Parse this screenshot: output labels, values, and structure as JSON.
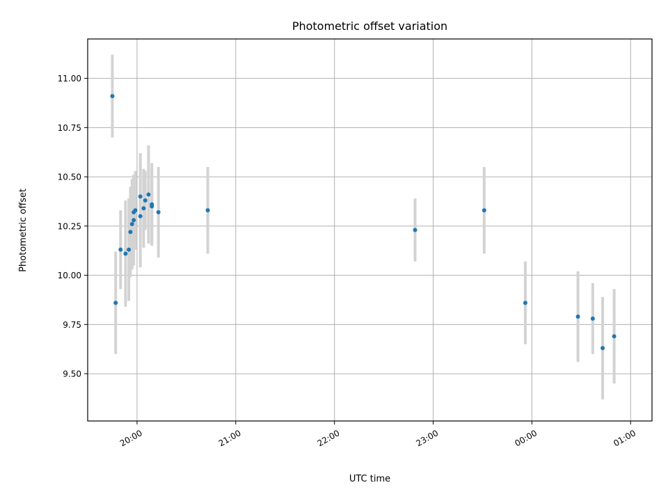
{
  "chart_data": {
    "type": "scatter",
    "title": "Photometric offset variation",
    "xlabel": "UTC time",
    "ylabel": "Photometric offset",
    "x_range_minutes": [
      1170,
      1513
    ],
    "ylim": [
      9.26,
      11.2
    ],
    "x_ticks": [
      {
        "value": 1200,
        "label": "20:00"
      },
      {
        "value": 1260,
        "label": "21:00"
      },
      {
        "value": 1320,
        "label": "22:00"
      },
      {
        "value": 1380,
        "label": "23:00"
      },
      {
        "value": 1440,
        "label": "00:00"
      },
      {
        "value": 1500,
        "label": "01:00"
      }
    ],
    "y_ticks": [
      {
        "value": 9.5,
        "label": "9.50"
      },
      {
        "value": 9.75,
        "label": "9.75"
      },
      {
        "value": 10.0,
        "label": "10.00"
      },
      {
        "value": 10.25,
        "label": "10.25"
      },
      {
        "value": 10.5,
        "label": "10.50"
      },
      {
        "value": 10.75,
        "label": "10.75"
      },
      {
        "value": 11.0,
        "label": "11.00"
      }
    ],
    "grid": true,
    "colors": {
      "point": "#1f77b4",
      "errorbar": "#d3d3d3"
    },
    "points": [
      {
        "x": "19:45",
        "y": 10.91,
        "err": 0.21
      },
      {
        "x": "19:47",
        "y": 9.86,
        "err": 0.26
      },
      {
        "x": "19:50",
        "y": 10.13,
        "err": 0.2
      },
      {
        "x": "19:53",
        "y": 10.11,
        "err": 0.27
      },
      {
        "x": "19:55",
        "y": 10.13,
        "err": 0.26
      },
      {
        "x": "19:56",
        "y": 10.22,
        "err": 0.23
      },
      {
        "x": "19:57",
        "y": 10.26,
        "err": 0.23
      },
      {
        "x": "19:58",
        "y": 10.32,
        "err": 0.19
      },
      {
        "x": "19:58",
        "y": 10.28,
        "err": 0.23
      },
      {
        "x": "19:59",
        "y": 10.33,
        "err": 0.2
      },
      {
        "x": "20:02",
        "y": 10.4,
        "err": 0.22
      },
      {
        "x": "20:02",
        "y": 10.3,
        "err": 0.26
      },
      {
        "x": "20:04",
        "y": 10.34,
        "err": 0.2
      },
      {
        "x": "20:05",
        "y": 10.38,
        "err": 0.15
      },
      {
        "x": "20:07",
        "y": 10.41,
        "err": 0.25
      },
      {
        "x": "20:09",
        "y": 10.36,
        "err": 0.21
      },
      {
        "x": "20:09",
        "y": 10.35,
        "err": 0.19
      },
      {
        "x": "20:13",
        "y": 10.32,
        "err": 0.23
      },
      {
        "x": "20:43",
        "y": 10.33,
        "err": 0.22
      },
      {
        "x": "22:49",
        "y": 10.23,
        "err": 0.16
      },
      {
        "x": "23:31",
        "y": 10.33,
        "err": 0.22
      },
      {
        "x": "23:56",
        "y": 9.86,
        "err": 0.21
      },
      {
        "x": "00:28",
        "y": 9.79,
        "err": 0.23
      },
      {
        "x": "00:37",
        "y": 9.78,
        "err": 0.18
      },
      {
        "x": "00:43",
        "y": 9.63,
        "err": 0.26
      },
      {
        "x": "00:50",
        "y": 9.69,
        "err": 0.24
      }
    ]
  }
}
